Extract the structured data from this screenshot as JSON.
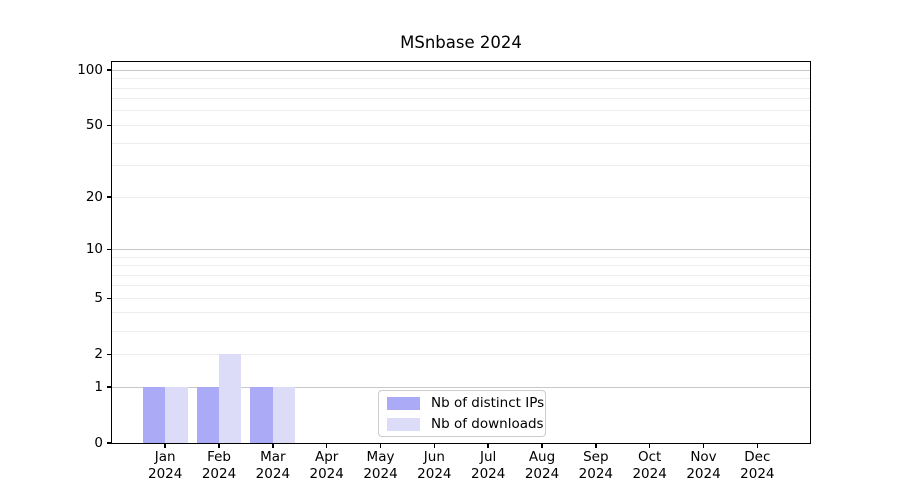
{
  "figure": {
    "background": "#ffffff"
  },
  "chart_data": {
    "type": "bar",
    "title": "MSnbase 2024",
    "x_months": [
      "Jan",
      "Feb",
      "Mar",
      "Apr",
      "May",
      "Jun",
      "Jul",
      "Aug",
      "Sep",
      "Oct",
      "Nov",
      "Dec"
    ],
    "x_year": "2024",
    "categories": [
      "Jan 2024",
      "Feb 2024",
      "Mar 2024",
      "Apr 2024",
      "May 2024",
      "Jun 2024",
      "Jul 2024",
      "Aug 2024",
      "Sep 2024",
      "Oct 2024",
      "Nov 2024",
      "Dec 2024"
    ],
    "series": [
      {
        "name": "Nb of distinct IPs",
        "color": "#aaaaf7",
        "values": [
          1,
          1,
          1,
          0,
          0,
          0,
          0,
          0,
          0,
          0,
          0,
          0
        ]
      },
      {
        "name": "Nb of downloads",
        "color": "#dcdcf9",
        "values": [
          1,
          2,
          1,
          0,
          0,
          0,
          0,
          0,
          0,
          0,
          0,
          0
        ]
      }
    ],
    "xlabel": "",
    "ylabel": "",
    "yscale": "log1p",
    "ylim": [
      0,
      111
    ],
    "yticks": [
      0,
      1,
      2,
      5,
      10,
      20,
      50,
      100
    ],
    "grid": {
      "on": true,
      "major_values": [
        1,
        10,
        100
      ],
      "minor_values": [
        2,
        3,
        4,
        5,
        6,
        7,
        8,
        9,
        20,
        30,
        40,
        50,
        60,
        70,
        80,
        90
      ],
      "major_color": "#c8c8c8",
      "minor_color": "#ededed"
    },
    "legend": {
      "position": "bottom-center-inside",
      "entries": [
        "Nb of distinct IPs",
        "Nb of downloads"
      ]
    },
    "axis_color": "#000000",
    "background": "#ffffff"
  }
}
